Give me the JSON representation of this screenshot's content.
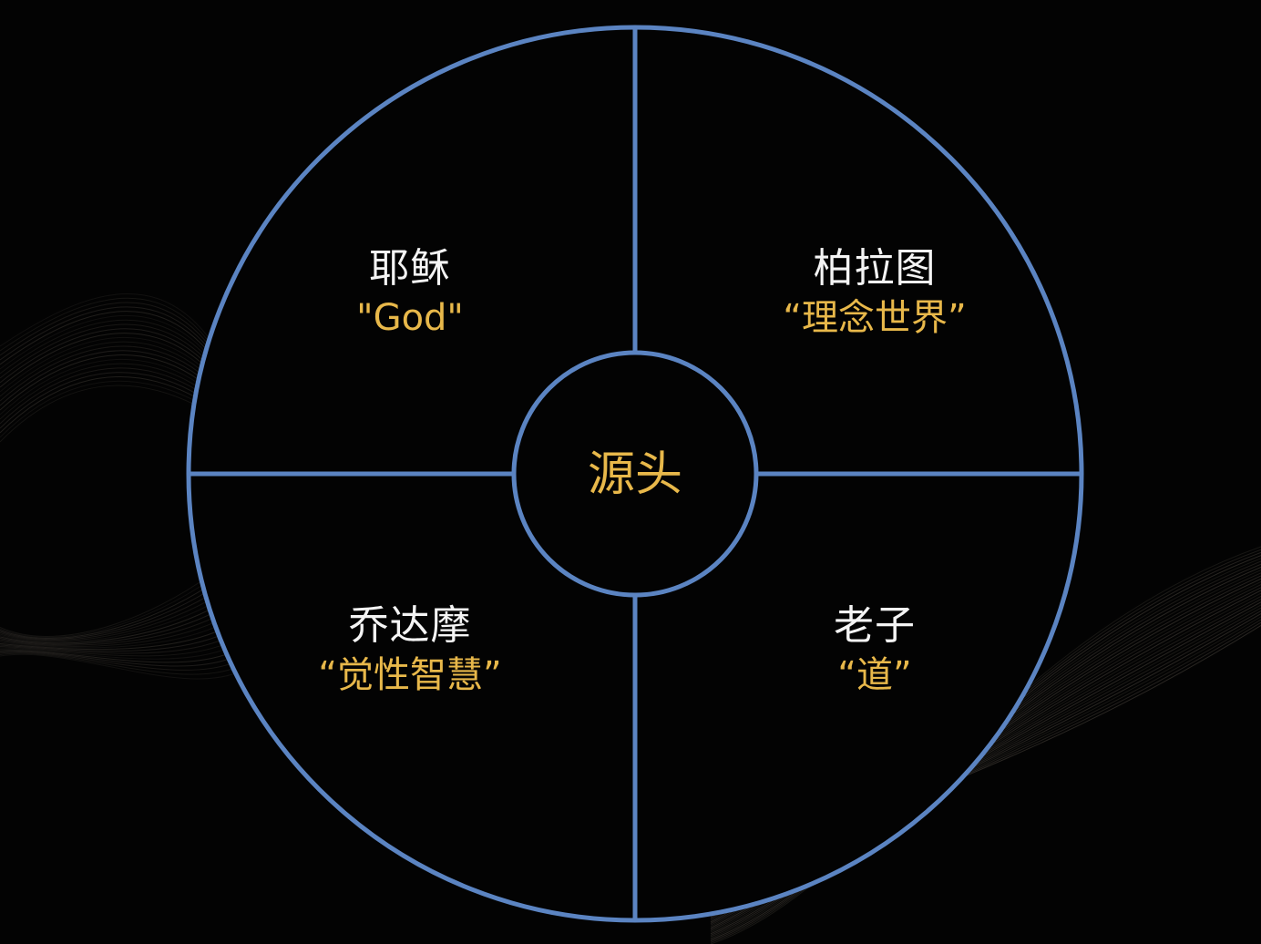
{
  "colors": {
    "background": "#030303",
    "ring_stroke": "#5b84c2",
    "name_text": "#f4f4f4",
    "concept_text": "#e8b84a",
    "wave_lines": "#3a3630"
  },
  "center": {
    "label": "源头"
  },
  "quadrants": [
    {
      "id": "top-left",
      "name": "耶稣",
      "concept": "\"God\""
    },
    {
      "id": "top-right",
      "name": "柏拉图",
      "concept": "“理念世界”"
    },
    {
      "id": "bottom-left",
      "name": "乔达摩",
      "concept": "“觉性智慧”"
    },
    {
      "id": "bottom-right",
      "name": "老子",
      "concept": "“道”"
    }
  ]
}
